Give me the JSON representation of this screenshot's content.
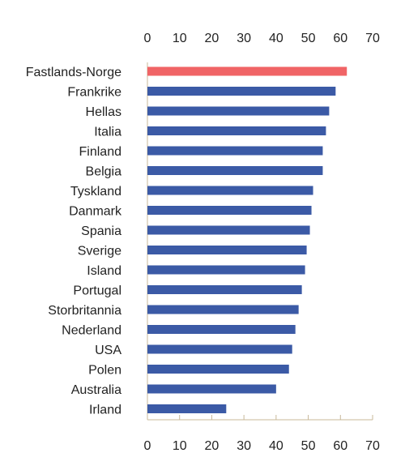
{
  "chart_data": {
    "type": "bar",
    "orientation": "horizontal",
    "title": "",
    "xlabel": "",
    "ylabel": "",
    "xlim": [
      0,
      70
    ],
    "xticks": [
      0,
      10,
      20,
      30,
      40,
      50,
      60,
      70
    ],
    "tick_label_position": "top-and-bottom",
    "grid": false,
    "legend": false,
    "colors": {
      "default": "#3b5aa6",
      "highlight": "#f06466",
      "axis": "#c8b89a"
    },
    "categories": [
      "Fastlands-Norge",
      "Frankrike",
      "Hellas",
      "Italia",
      "Finland",
      "Belgia",
      "Tyskland",
      "Danmark",
      "Spania",
      "Sverige",
      "Island",
      "Portugal",
      "Storbritannia",
      "Nederland",
      "USA",
      "Polen",
      "Australia",
      "Irland"
    ],
    "values": [
      62,
      58.5,
      56.5,
      55.5,
      54.5,
      54.5,
      51.5,
      51,
      50.5,
      49.5,
      49,
      48,
      47,
      46,
      45,
      44,
      40,
      24.5
    ],
    "highlight_index": 0
  }
}
